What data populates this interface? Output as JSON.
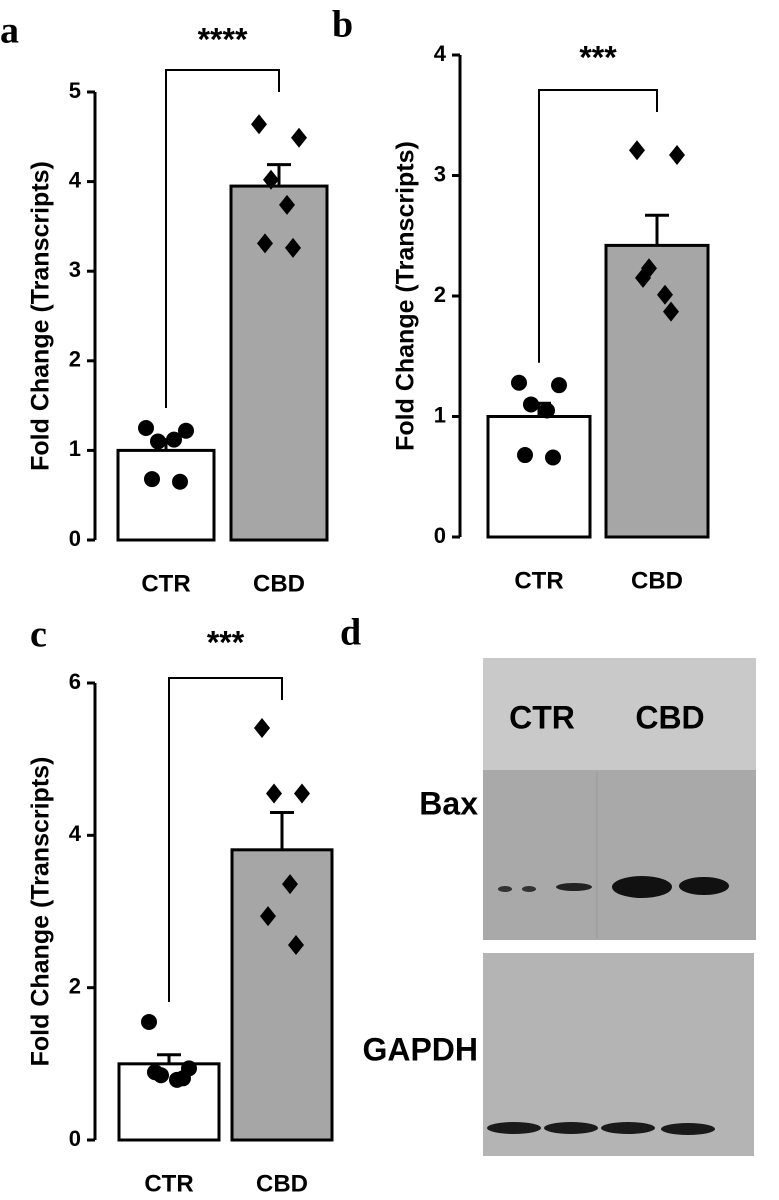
{
  "chart_data": [
    {
      "type": "bar",
      "panel": "a",
      "ylabel": "Fold Change (Transcripts)",
      "categories": [
        "CTR",
        "CBD"
      ],
      "values": [
        1.0,
        3.95
      ],
      "errors": [
        0.12,
        0.24
      ],
      "points": [
        [
          1.25,
          1.22,
          1.1,
          1.12,
          0.68,
          0.65
        ],
        [
          4.64,
          4.49,
          4.02,
          3.74,
          3.31,
          3.26
        ]
      ],
      "colors": [
        "#ffffff",
        "#a6a6a6"
      ],
      "point_color": "#000000",
      "ylim": [
        0,
        5
      ],
      "yticks": [
        0,
        1,
        2,
        3,
        4,
        5
      ],
      "significance": "****"
    },
    {
      "type": "bar",
      "panel": "b",
      "ylabel": "Fold Change (Transcripts)",
      "categories": [
        "CTR",
        "CBD"
      ],
      "values": [
        1.0,
        2.42
      ],
      "errors": [
        0.11,
        0.25
      ],
      "points": [
        [
          1.28,
          1.26,
          1.1,
          1.05,
          0.68,
          0.66
        ],
        [
          3.21,
          3.17,
          2.23,
          2.01,
          2.15,
          1.87
        ]
      ],
      "colors": [
        "#ffffff",
        "#a6a6a6"
      ],
      "point_color": "#000000",
      "ylim": [
        0,
        4
      ],
      "yticks": [
        0,
        1,
        2,
        3,
        4
      ],
      "significance": "***"
    },
    {
      "type": "bar",
      "panel": "c",
      "ylabel": "Fold Change (Transcripts)",
      "categories": [
        "CTR",
        "CBD"
      ],
      "values": [
        1.0,
        3.81
      ],
      "errors": [
        0.12,
        0.49
      ],
      "points": [
        [
          1.55,
          0.94,
          0.85,
          0.79,
          0.89,
          0.81
        ],
        [
          5.41,
          4.55,
          4.55,
          3.36,
          2.94,
          2.56
        ]
      ],
      "colors": [
        "#ffffff",
        "#a6a6a6"
      ],
      "point_color": "#000000",
      "ylim": [
        0,
        6
      ],
      "yticks": [
        0,
        2,
        4,
        6
      ],
      "significance": "***"
    }
  ],
  "blot": {
    "panel": "d",
    "lanes": [
      "CTR",
      "CBD"
    ],
    "proteins": [
      "Bax",
      "GAPDH"
    ]
  }
}
